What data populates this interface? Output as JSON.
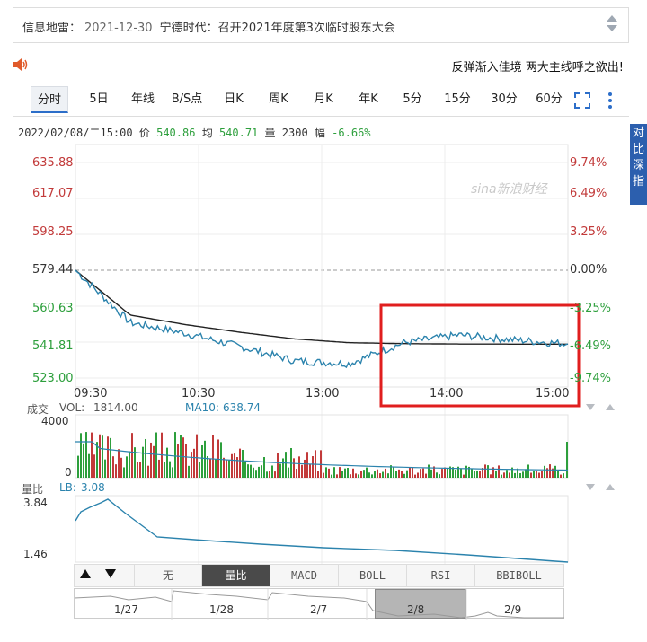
{
  "news": {
    "label": "信息地雷：",
    "date": "2021-12-30",
    "title": "宁德时代：召开2021年度第3次临时股东大会"
  },
  "marquee": "反弹渐入佳境  两大主线呼之欲出!",
  "tabs": [
    "分时",
    "5日",
    "年线",
    "B/S点",
    "日K",
    "周K",
    "月K",
    "年K",
    "5分",
    "15分",
    "30分",
    "60分"
  ],
  "status": {
    "datetime": "2022/02/08/二15:00",
    "price_label": "价",
    "price": "540.86",
    "avg_label": "均",
    "avg": "540.71",
    "vol_label": "量",
    "vol": "2300",
    "chg_label": "幅",
    "chg": "-6.66%"
  },
  "side_button": "对比深指",
  "price_axis": [
    "635.88",
    "617.07",
    "598.25",
    "579.44",
    "560.63",
    "541.81",
    "523.00"
  ],
  "pct_axis": [
    "9.74%",
    "6.49%",
    "3.25%",
    "0.00%",
    "-3.25%",
    "-6.49%",
    "-9.74%"
  ],
  "time_axis": [
    "09:30",
    "10:30",
    "13:00",
    "14:00",
    "15:00"
  ],
  "watermark": "sina新浪财经",
  "volume": {
    "title": "成交",
    "vol_label": "VOL:",
    "vol_value": "1814.00",
    "ma_label": "MA10:",
    "ma_value": "638.74",
    "axis_top": "4000",
    "axis_zero": "0"
  },
  "ratio": {
    "title": "量比",
    "lb_label": "LB:",
    "lb_value": "3.08",
    "axis_top": "3.84",
    "axis_bottom": "1.46"
  },
  "indicators": [
    "无",
    "量比",
    "MACD",
    "BOLL",
    "RSI",
    "BBIBOLL"
  ],
  "active_indicator": "量比",
  "nav_days": [
    "1/27",
    "1/28",
    "2/7",
    "2/8",
    "2/9"
  ],
  "colors": {
    "up": "#c23a3a",
    "down": "#2d9f3c",
    "price_line": "#2b83ad",
    "avg_line": "#222222",
    "highlight": "#e01e1e"
  },
  "chart_data": {
    "type": "line",
    "title": "",
    "x": [
      "09:30",
      "10:00",
      "10:30",
      "11:00",
      "11:30",
      "13:00",
      "13:30",
      "14:00",
      "14:30",
      "15:00"
    ],
    "series": [
      {
        "name": "价",
        "values": [
          579.44,
          552.0,
          546.5,
          539.5,
          532.0,
          530.5,
          541.5,
          545.5,
          543.0,
          540.86
        ]
      },
      {
        "name": "均",
        "values": [
          579.44,
          556.0,
          551.0,
          547.0,
          543.5,
          541.5,
          541.0,
          540.8,
          540.75,
          540.71
        ]
      }
    ],
    "ylim": [
      523.0,
      635.88
    ],
    "grid": true
  }
}
